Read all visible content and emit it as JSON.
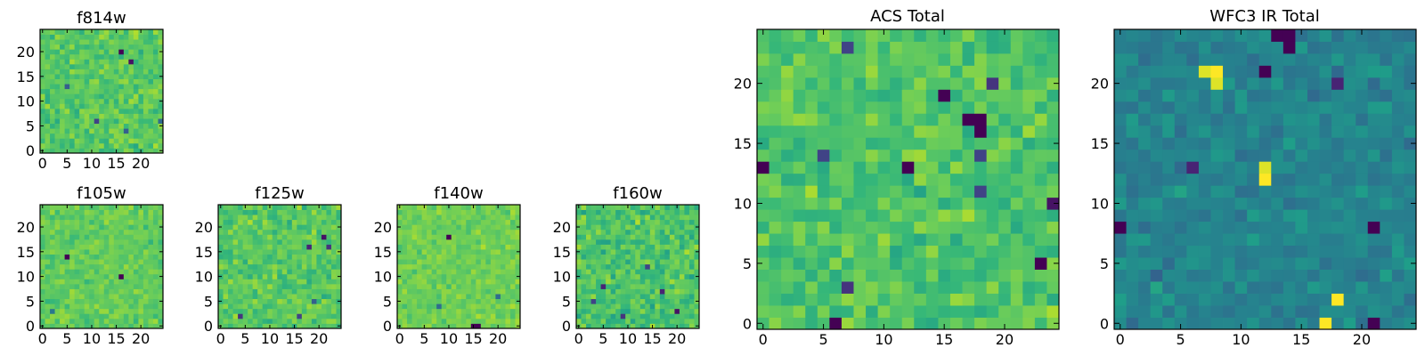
{
  "figure": {
    "colormap": "viridis",
    "colors": {
      "background": "#ffffff",
      "frame": "#000000",
      "viridis_low": "#440154",
      "viridis_mid": "#21918c",
      "viridis_high": "#fde725"
    }
  },
  "chart_data": [
    {
      "type": "heatmap",
      "title": "f814w",
      "grid_size": 25,
      "xlim": [
        -0.5,
        24.5
      ],
      "ylim": [
        -0.5,
        24.5
      ],
      "xticks": [
        "0",
        "5",
        "10",
        "15",
        "20"
      ],
      "yticks": [
        "0",
        "5",
        "10",
        "15",
        "20"
      ],
      "value_range": [
        0,
        1
      ],
      "typical_value": 0.74,
      "spread": 0.1,
      "outliers": [
        {
          "x": 16,
          "y": 20,
          "value": 0.0
        },
        {
          "x": 18,
          "y": 18,
          "value": 0.05
        },
        {
          "x": 11,
          "y": 6,
          "value": 0.2
        },
        {
          "x": 5,
          "y": 13,
          "value": 0.3
        },
        {
          "x": 17,
          "y": 4,
          "value": 0.3
        },
        {
          "x": 24,
          "y": 6,
          "value": 0.35
        }
      ]
    },
    {
      "type": "heatmap",
      "title": "f105w",
      "grid_size": 25,
      "xlim": [
        -0.5,
        24.5
      ],
      "ylim": [
        -0.5,
        24.5
      ],
      "xticks": [
        "0",
        "5",
        "10",
        "15",
        "20"
      ],
      "yticks": [
        "0",
        "5",
        "10",
        "15",
        "20"
      ],
      "value_range": [
        0,
        1
      ],
      "typical_value": 0.76,
      "spread": 0.08,
      "outliers": [
        {
          "x": 5,
          "y": 14,
          "value": 0.0
        },
        {
          "x": 16,
          "y": 10,
          "value": 0.0
        },
        {
          "x": 2,
          "y": 3,
          "value": 0.4
        }
      ]
    },
    {
      "type": "heatmap",
      "title": "f125w",
      "grid_size": 25,
      "xlim": [
        -0.5,
        24.5
      ],
      "ylim": [
        -0.5,
        24.5
      ],
      "xticks": [
        "0",
        "5",
        "10",
        "15",
        "20"
      ],
      "yticks": [
        "0",
        "5",
        "10",
        "15",
        "20"
      ],
      "value_range": [
        0,
        1
      ],
      "typical_value": 0.74,
      "spread": 0.1,
      "outliers": [
        {
          "x": 21,
          "y": 18,
          "value": 0.05
        },
        {
          "x": 22,
          "y": 16,
          "value": 0.15
        },
        {
          "x": 18,
          "y": 16,
          "value": 0.1
        },
        {
          "x": 4,
          "y": 2,
          "value": 0.15
        },
        {
          "x": 16,
          "y": 2,
          "value": 0.2
        },
        {
          "x": 19,
          "y": 5,
          "value": 0.3
        }
      ]
    },
    {
      "type": "heatmap",
      "title": "f140w",
      "grid_size": 25,
      "xlim": [
        -0.5,
        24.5
      ],
      "ylim": [
        -0.5,
        24.5
      ],
      "xticks": [
        "0",
        "5",
        "10",
        "15",
        "20"
      ],
      "yticks": [
        "0",
        "5",
        "10",
        "15",
        "20"
      ],
      "value_range": [
        0,
        1
      ],
      "typical_value": 0.78,
      "spread": 0.07,
      "outliers": [
        {
          "x": 10,
          "y": 18,
          "value": 0.0
        },
        {
          "x": 15,
          "y": 0,
          "value": 0.0
        },
        {
          "x": 16,
          "y": 0,
          "value": 0.0
        },
        {
          "x": 8,
          "y": 4,
          "value": 0.35
        },
        {
          "x": 20,
          "y": 6,
          "value": 0.35
        }
      ]
    },
    {
      "type": "heatmap",
      "title": "f160w",
      "grid_size": 25,
      "xlim": [
        -0.5,
        24.5
      ],
      "ylim": [
        -0.5,
        24.5
      ],
      "xticks": [
        "0",
        "5",
        "10",
        "15",
        "20"
      ],
      "yticks": [
        "0",
        "5",
        "10",
        "15",
        "20"
      ],
      "value_range": [
        0,
        1
      ],
      "typical_value": 0.72,
      "spread": 0.12,
      "outliers": [
        {
          "x": 5,
          "y": 8,
          "value": 0.1
        },
        {
          "x": 17,
          "y": 7,
          "value": 0.1
        },
        {
          "x": 20,
          "y": 3,
          "value": 0.05
        },
        {
          "x": 9,
          "y": 2,
          "value": 0.15
        },
        {
          "x": 14,
          "y": 12,
          "value": 0.2
        },
        {
          "x": 3,
          "y": 5,
          "value": 0.2
        }
      ]
    },
    {
      "type": "heatmap",
      "title": "ACS Total",
      "grid_size": 25,
      "xlim": [
        -0.5,
        24.5
      ],
      "ylim": [
        -0.5,
        24.5
      ],
      "xticks": [
        "0",
        "5",
        "10",
        "15",
        "20"
      ],
      "yticks": [
        "0",
        "5",
        "10",
        "15",
        "20"
      ],
      "value_range": [
        0,
        1
      ],
      "typical_value": 0.72,
      "spread": 0.11,
      "outliers": [
        {
          "x": 15,
          "y": 19,
          "value": 0.0
        },
        {
          "x": 17,
          "y": 17,
          "value": 0.0
        },
        {
          "x": 18,
          "y": 17,
          "value": 0.0
        },
        {
          "x": 18,
          "y": 16,
          "value": 0.0
        },
        {
          "x": 0,
          "y": 13,
          "value": 0.0
        },
        {
          "x": 12,
          "y": 13,
          "value": 0.0
        },
        {
          "x": 24,
          "y": 10,
          "value": 0.05
        },
        {
          "x": 23,
          "y": 5,
          "value": 0.0
        },
        {
          "x": 6,
          "y": 0,
          "value": 0.0
        },
        {
          "x": 7,
          "y": 3,
          "value": 0.15
        },
        {
          "x": 18,
          "y": 11,
          "value": 0.2
        },
        {
          "x": 7,
          "y": 23,
          "value": 0.2
        },
        {
          "x": 5,
          "y": 14,
          "value": 0.2
        },
        {
          "x": 18,
          "y": 14,
          "value": 0.2
        },
        {
          "x": 19,
          "y": 20,
          "value": 0.15
        }
      ]
    },
    {
      "type": "heatmap",
      "title": "WFC3 IR Total",
      "grid_size": 25,
      "xlim": [
        -0.5,
        24.5
      ],
      "ylim": [
        -0.5,
        24.5
      ],
      "xticks": [
        "0",
        "5",
        "10",
        "15",
        "20"
      ],
      "yticks": [
        "0",
        "5",
        "10",
        "15",
        "20"
      ],
      "value_range": [
        0,
        1
      ],
      "typical_value": 0.45,
      "spread": 0.09,
      "outliers": [
        {
          "x": 8,
          "y": 21,
          "value": 1.0
        },
        {
          "x": 7,
          "y": 21,
          "value": 0.95
        },
        {
          "x": 8,
          "y": 20,
          "value": 0.95
        },
        {
          "x": 12,
          "y": 12,
          "value": 1.0
        },
        {
          "x": 12,
          "y": 13,
          "value": 0.95
        },
        {
          "x": 18,
          "y": 2,
          "value": 1.0
        },
        {
          "x": 17,
          "y": 0,
          "value": 1.0
        },
        {
          "x": 13,
          "y": 24,
          "value": 0.0
        },
        {
          "x": 14,
          "y": 24,
          "value": 0.0
        },
        {
          "x": 12,
          "y": 21,
          "value": 0.0
        },
        {
          "x": 14,
          "y": 23,
          "value": 0.0
        },
        {
          "x": 0,
          "y": 8,
          "value": 0.0
        },
        {
          "x": 21,
          "y": 8,
          "value": 0.0
        },
        {
          "x": 21,
          "y": 0,
          "value": 0.0
        },
        {
          "x": 6,
          "y": 13,
          "value": 0.1
        },
        {
          "x": 18,
          "y": 20,
          "value": 0.1
        }
      ]
    }
  ]
}
